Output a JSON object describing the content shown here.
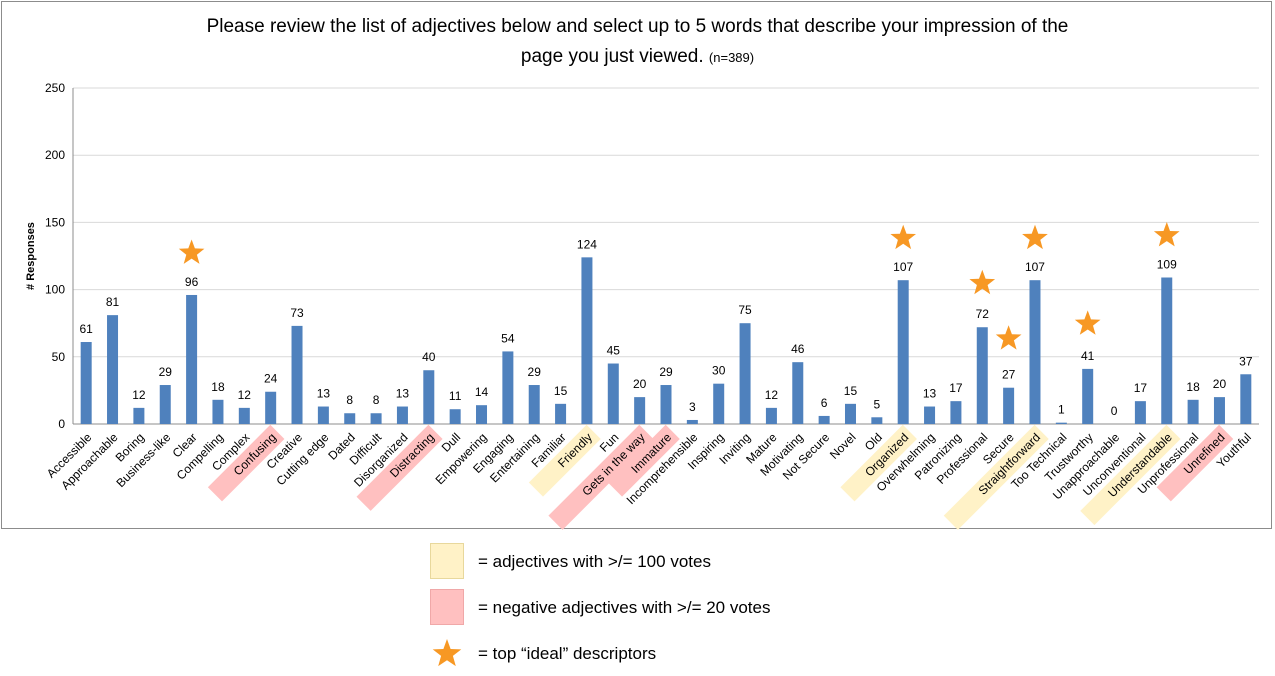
{
  "title": {
    "line1": "Please review the list of adjectives below and select up to 5 words that describe your impression of the",
    "line2": "page you just viewed.",
    "n": "(n=389)"
  },
  "legend": {
    "yellow_label": "= adjectives with >/= 100 votes",
    "pink_label": "= negative adjectives with >/= 20 votes",
    "star_label": "= top “ideal” descriptors"
  },
  "colors": {
    "bar": "#4f81bd",
    "highlight_yellow": "#fff2c7",
    "highlight_pink": "#ffc0c0",
    "star": "#f79824",
    "grid": "#d9d9d9"
  },
  "chart_data": {
    "type": "bar",
    "title": "Please review the list of adjectives below and select up to 5 words that describe your impression of the page you just viewed. (n=389)",
    "xlabel": "",
    "ylabel": "# Responses",
    "ylim": [
      0,
      250
    ],
    "yticks": [
      0,
      50,
      100,
      150,
      200,
      250
    ],
    "grid": true,
    "categories": [
      "Accessible",
      "Approachable",
      "Boring",
      "Business-like",
      "Clear",
      "Compelling",
      "Complex",
      "Confusing",
      "Creative",
      "Cutting edge",
      "Dated",
      "Difficult",
      "Disorganized",
      "Distracting",
      "Dull",
      "Empowering",
      "Engaging",
      "Entertaining",
      "Familiar",
      "Friendly",
      "Fun",
      "Gets in the way",
      "Immature",
      "Incomprehensible",
      "Inspiring",
      "Inviting",
      "Mature",
      "Motivating",
      "Not Secure",
      "Novel",
      "Old",
      "Organized",
      "Overwhelming",
      "Patronizing",
      "Professional",
      "Secure",
      "Straightforward",
      "Too Technical",
      "Trustworthy",
      "Unapproachable",
      "Unconventional",
      "Understandable",
      "Unprofessional",
      "Unrefined",
      "Youthful"
    ],
    "values": [
      61,
      81,
      12,
      29,
      96,
      18,
      12,
      24,
      73,
      13,
      8,
      8,
      13,
      40,
      11,
      14,
      54,
      29,
      15,
      124,
      45,
      20,
      29,
      3,
      30,
      75,
      12,
      46,
      6,
      15,
      5,
      107,
      13,
      17,
      72,
      27,
      107,
      1,
      41,
      0,
      17,
      109,
      18,
      20,
      37
    ],
    "highlight_yellow": [
      "Friendly",
      "Organized",
      "Straightforward",
      "Understandable"
    ],
    "highlight_pink": [
      "Confusing",
      "Distracting",
      "Gets in the way",
      "Immature",
      "Unrefined"
    ],
    "starred": [
      "Clear",
      "Organized",
      "Professional",
      "Secure",
      "Straightforward",
      "Trustworthy",
      "Understandable"
    ]
  }
}
